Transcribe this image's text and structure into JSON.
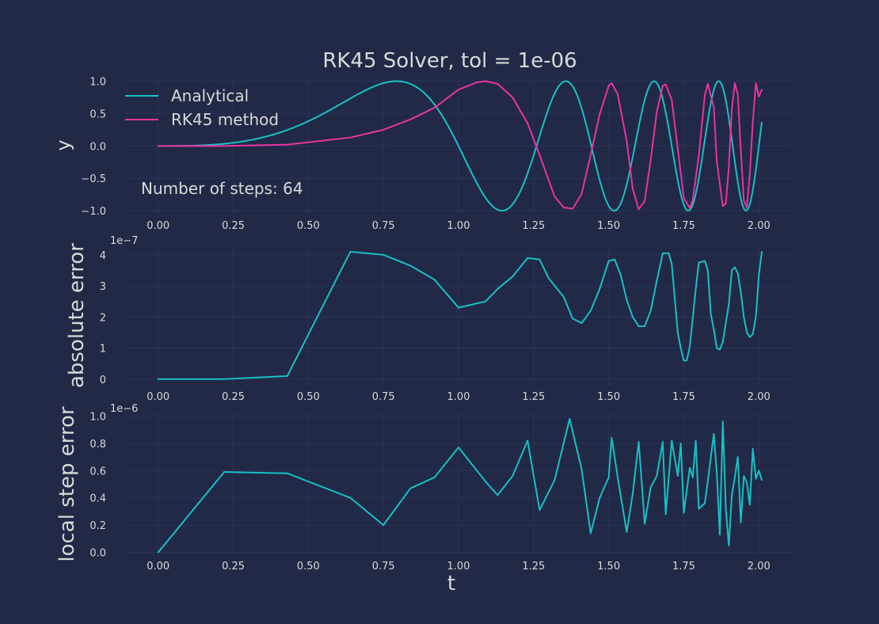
{
  "figure": {
    "title": "RK45 Solver, tol = 1e-06",
    "colors": {
      "background": "#212946",
      "grid": "#2A3459",
      "text": "#D9D9D9",
      "analytical": "#18C0C4",
      "rk45": "#E9339F"
    }
  },
  "chart_data": [
    {
      "type": "line",
      "ylabel": "y",
      "xlim": [
        -0.11,
        2.11
      ],
      "ylim": [
        -1.06,
        1.08
      ],
      "xticks": [
        0,
        0.25,
        0.5,
        0.75,
        1.0,
        1.25,
        1.5,
        1.75,
        2.0
      ],
      "xtick_labels": [
        "0.00",
        "0.25",
        "0.50",
        "0.75",
        "1.00",
        "1.25",
        "1.50",
        "1.75",
        "2.00"
      ],
      "yticks": [
        -1.0,
        -0.5,
        0.0,
        0.5,
        1.0
      ],
      "ytick_labels": [
        "−1.0",
        "−0.5",
        "0.0",
        "0.5",
        "1.0"
      ],
      "annotation": "Number of steps: 64",
      "legend_position": "top-left",
      "grid": true,
      "series": [
        {
          "name": "Analytical",
          "function": "sin(pi*t^3)",
          "color": "#18C0C4"
        },
        {
          "name": "RK45 method",
          "x": [
            0,
            0.22,
            0.43,
            0.64,
            0.75,
            0.84,
            0.92,
            1.0,
            1.06,
            1.09,
            1.13,
            1.18,
            1.23,
            1.27,
            1.32,
            1.35,
            1.38,
            1.41,
            1.44,
            1.47,
            1.5,
            1.51,
            1.53,
            1.56,
            1.58,
            1.6,
            1.62,
            1.64,
            1.66,
            1.68,
            1.69,
            1.71,
            1.73,
            1.75,
            1.77,
            1.78,
            1.8,
            1.82,
            1.83,
            1.85,
            1.86,
            1.88,
            1.89,
            1.9,
            1.91,
            1.92,
            1.93,
            1.94,
            1.95,
            1.96,
            1.97,
            1.98,
            1.99,
            2.0,
            2.01
          ],
          "values": [
            0.0,
            0.0,
            0.02,
            0.13,
            0.25,
            0.41,
            0.59,
            0.87,
            0.98,
            1.0,
            0.96,
            0.75,
            0.35,
            -0.14,
            -0.78,
            -0.95,
            -0.97,
            -0.74,
            -0.14,
            0.49,
            0.93,
            0.97,
            0.8,
            0.08,
            -0.66,
            -0.98,
            -0.85,
            -0.21,
            0.52,
            0.93,
            0.95,
            0.71,
            -0.04,
            -0.8,
            -0.96,
            -0.83,
            -0.15,
            0.78,
            0.96,
            0.6,
            -0.24,
            -0.93,
            -0.89,
            -0.33,
            0.56,
            0.97,
            0.79,
            -0.07,
            -0.84,
            -0.95,
            -0.42,
            0.37,
            0.97,
            0.76,
            0.87
          ],
          "color": "#E9339F"
        }
      ]
    },
    {
      "type": "line",
      "ylabel": "absolute error",
      "scale_label": "1e−7",
      "xlim": [
        -0.11,
        2.11
      ],
      "ylim": [
        -0.21,
        4.3
      ],
      "xticks": [
        0,
        0.25,
        0.5,
        0.75,
        1.0,
        1.25,
        1.5,
        1.75,
        2.0
      ],
      "xtick_labels": [
        "0.00",
        "0.25",
        "0.50",
        "0.75",
        "1.00",
        "1.25",
        "1.50",
        "1.75",
        "2.00"
      ],
      "yticks": [
        0,
        1,
        2,
        3,
        4
      ],
      "ytick_labels": [
        "0",
        "1",
        "2",
        "3",
        "4"
      ],
      "grid": true,
      "series": [
        {
          "x": [
            0,
            0.22,
            0.43,
            0.64,
            0.75,
            0.84,
            0.92,
            1.0,
            1.09,
            1.13,
            1.18,
            1.23,
            1.27,
            1.3,
            1.35,
            1.38,
            1.41,
            1.44,
            1.47,
            1.5,
            1.52,
            1.54,
            1.56,
            1.58,
            1.6,
            1.62,
            1.64,
            1.66,
            1.68,
            1.7,
            1.71,
            1.73,
            1.74,
            1.75,
            1.76,
            1.77,
            1.79,
            1.8,
            1.82,
            1.83,
            1.84,
            1.85,
            1.86,
            1.87,
            1.88,
            1.9,
            1.91,
            1.92,
            1.93,
            1.94,
            1.95,
            1.96,
            1.97,
            1.98,
            1.99,
            2.0,
            2.01
          ],
          "values": [
            0.0,
            0.0,
            0.1,
            4.1,
            4.0,
            3.65,
            3.2,
            2.3,
            2.5,
            2.9,
            3.3,
            3.9,
            3.85,
            3.25,
            2.65,
            1.95,
            1.8,
            2.2,
            2.9,
            3.8,
            3.85,
            3.35,
            2.55,
            2.0,
            1.7,
            1.7,
            2.2,
            3.15,
            4.05,
            4.05,
            3.7,
            1.5,
            1.0,
            0.6,
            0.6,
            1.05,
            2.9,
            3.75,
            3.8,
            3.5,
            2.1,
            1.6,
            1.0,
            0.95,
            1.2,
            2.4,
            3.5,
            3.6,
            3.4,
            2.8,
            2.0,
            1.5,
            1.35,
            1.45,
            2.0,
            3.35,
            4.1
          ],
          "color": "#18C0C4"
        }
      ]
    },
    {
      "type": "line",
      "ylabel": "local step error",
      "xlabel": "t",
      "scale_label": "1e−6",
      "xlim": [
        -0.11,
        2.11
      ],
      "ylim": [
        -0.02,
        1.02
      ],
      "xticks": [
        0,
        0.25,
        0.5,
        0.75,
        1.0,
        1.25,
        1.5,
        1.75,
        2.0
      ],
      "xtick_labels": [
        "0.00",
        "0.25",
        "0.50",
        "0.75",
        "1.00",
        "1.25",
        "1.50",
        "1.75",
        "2.00"
      ],
      "yticks": [
        0.0,
        0.2,
        0.4,
        0.6,
        0.8,
        1.0
      ],
      "ytick_labels": [
        "0.0",
        "0.2",
        "0.4",
        "0.6",
        "0.8",
        "1.0"
      ],
      "grid": true,
      "series": [
        {
          "x": [
            0,
            0.22,
            0.43,
            0.64,
            0.75,
            0.84,
            0.92,
            1.0,
            1.09,
            1.13,
            1.18,
            1.23,
            1.27,
            1.32,
            1.35,
            1.37,
            1.41,
            1.44,
            1.47,
            1.5,
            1.51,
            1.53,
            1.56,
            1.58,
            1.6,
            1.62,
            1.64,
            1.66,
            1.68,
            1.69,
            1.71,
            1.73,
            1.74,
            1.75,
            1.77,
            1.78,
            1.79,
            1.8,
            1.82,
            1.83,
            1.85,
            1.86,
            1.87,
            1.88,
            1.89,
            1.9,
            1.91,
            1.92,
            1.93,
            1.94,
            1.95,
            1.96,
            1.97,
            1.98,
            1.99,
            2.0,
            2.01
          ],
          "values": [
            0.0,
            0.59,
            0.58,
            0.4,
            0.2,
            0.47,
            0.55,
            0.77,
            0.52,
            0.42,
            0.56,
            0.82,
            0.31,
            0.53,
            0.8,
            0.98,
            0.61,
            0.14,
            0.4,
            0.55,
            0.84,
            0.55,
            0.15,
            0.43,
            0.81,
            0.21,
            0.48,
            0.56,
            0.81,
            0.28,
            0.82,
            0.56,
            0.8,
            0.29,
            0.62,
            0.55,
            0.82,
            0.32,
            0.36,
            0.52,
            0.87,
            0.58,
            0.13,
            0.96,
            0.32,
            0.05,
            0.42,
            0.55,
            0.7,
            0.22,
            0.56,
            0.51,
            0.35,
            0.76,
            0.54,
            0.6,
            0.53
          ],
          "color": "#18C0C4"
        }
      ]
    }
  ]
}
